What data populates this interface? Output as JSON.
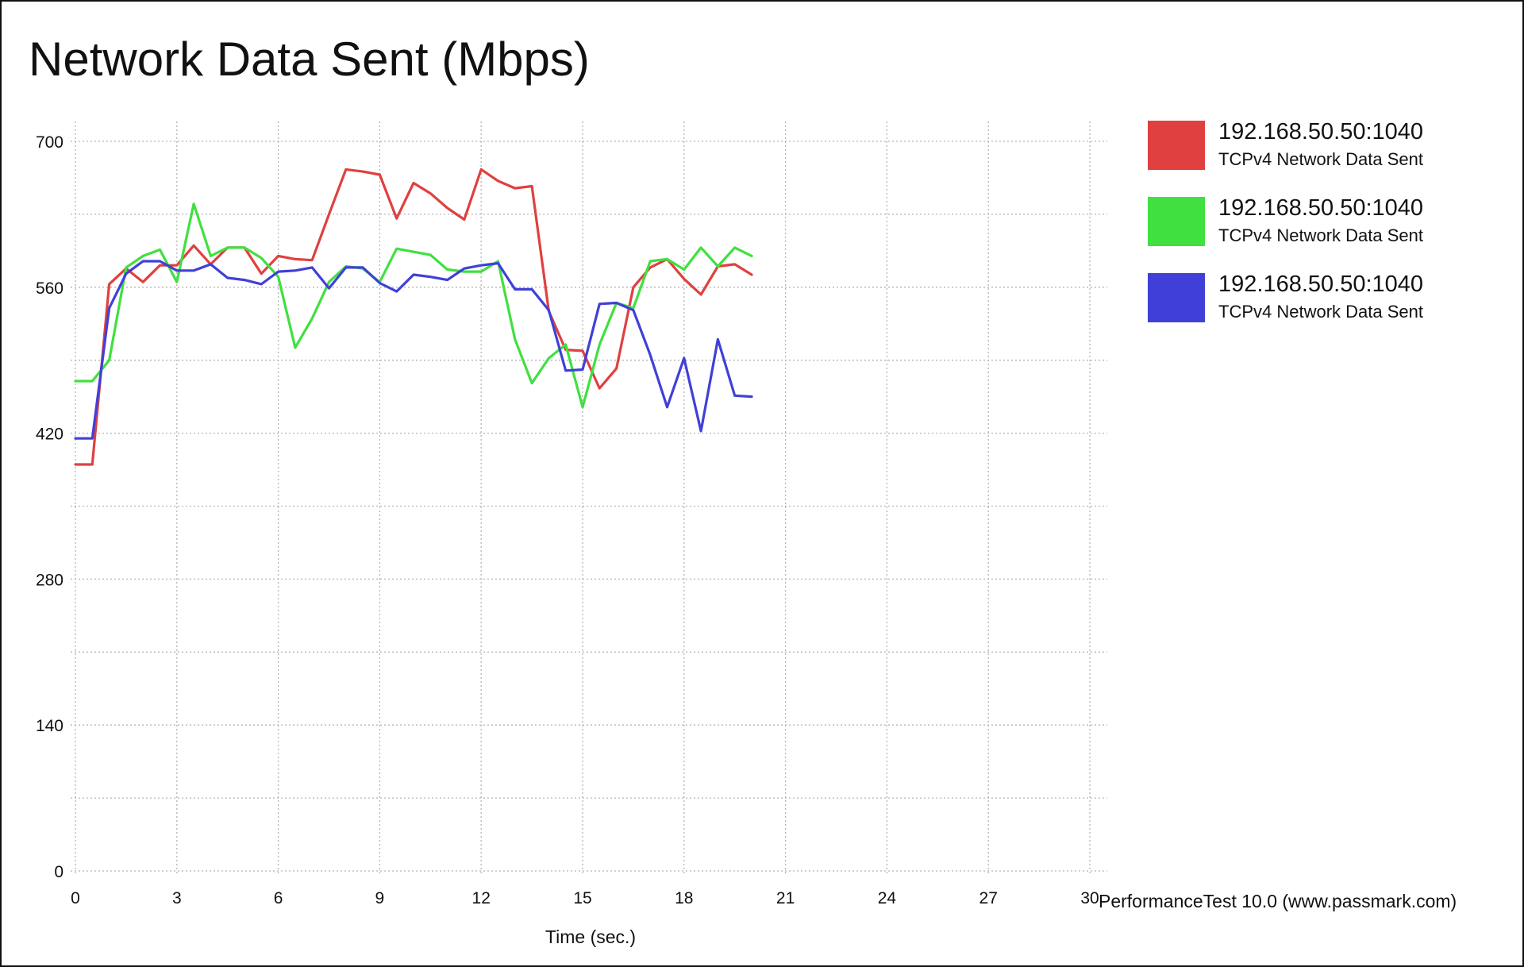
{
  "title": "Network Data Sent (Mbps)",
  "credit": "PerformanceTest 10.0 (www.passmark.com)",
  "chart_data": {
    "type": "line",
    "title": "Network Data Sent (Mbps)",
    "xlabel": "Time (sec.)",
    "ylabel": "",
    "xlim": [
      0,
      30
    ],
    "ylim": [
      0,
      700
    ],
    "x_ticks": [
      "0",
      "3",
      "6",
      "9",
      "12",
      "15",
      "18",
      "21",
      "24",
      "27",
      "30"
    ],
    "y_ticks": [
      "0",
      "140",
      "280",
      "420",
      "560",
      "700"
    ],
    "grid": true,
    "grid_style": "dotted",
    "legend_position": "right",
    "series": [
      {
        "name": "192.168.50.50:1040",
        "subtitle": "TCPv4 Network Data Sent",
        "color": "#e04040",
        "points": [
          [
            0,
            390
          ],
          [
            0.5,
            390
          ],
          [
            1,
            563
          ],
          [
            1.5,
            578
          ],
          [
            2,
            565
          ],
          [
            2.5,
            581
          ],
          [
            3,
            581
          ],
          [
            3.5,
            600
          ],
          [
            4,
            582
          ],
          [
            4.5,
            598
          ],
          [
            5,
            598
          ],
          [
            5.5,
            573
          ],
          [
            6,
            590
          ],
          [
            6.5,
            587
          ],
          [
            7,
            586
          ],
          [
            7.5,
            630
          ],
          [
            8,
            673
          ],
          [
            8.5,
            671
          ],
          [
            9,
            668
          ],
          [
            9.5,
            626
          ],
          [
            10,
            660
          ],
          [
            10.5,
            650
          ],
          [
            11,
            636
          ],
          [
            11.5,
            625
          ],
          [
            12,
            673
          ],
          [
            12.5,
            662
          ],
          [
            13,
            655
          ],
          [
            13.5,
            657
          ],
          [
            14,
            537
          ],
          [
            14.5,
            500
          ],
          [
            15,
            499
          ],
          [
            15.5,
            463
          ],
          [
            16,
            482
          ],
          [
            16.5,
            560
          ],
          [
            17,
            579
          ],
          [
            17.5,
            587
          ],
          [
            18,
            568
          ],
          [
            18.5,
            553
          ],
          [
            19,
            580
          ],
          [
            19.5,
            582
          ],
          [
            20,
            572
          ]
        ]
      },
      {
        "name": "192.168.50.50:1040",
        "subtitle": "TCPv4 Network Data Sent",
        "color": "#40e040",
        "points": [
          [
            0,
            470
          ],
          [
            0.5,
            470
          ],
          [
            1,
            490
          ],
          [
            1.5,
            579
          ],
          [
            2,
            590
          ],
          [
            2.5,
            596
          ],
          [
            3,
            565
          ],
          [
            3.5,
            640
          ],
          [
            4,
            590
          ],
          [
            4.5,
            598
          ],
          [
            5,
            598
          ],
          [
            5.5,
            588
          ],
          [
            6,
            570
          ],
          [
            6.5,
            502
          ],
          [
            7,
            530
          ],
          [
            7.5,
            565
          ],
          [
            8,
            580
          ],
          [
            8.5,
            578
          ],
          [
            9,
            565
          ],
          [
            9.5,
            597
          ],
          [
            10,
            594
          ],
          [
            10.5,
            591
          ],
          [
            11,
            577
          ],
          [
            11.5,
            575
          ],
          [
            12,
            575
          ],
          [
            12.5,
            585
          ],
          [
            13,
            510
          ],
          [
            13.5,
            468
          ],
          [
            14,
            492
          ],
          [
            14.5,
            505
          ],
          [
            15,
            445
          ],
          [
            15.5,
            505
          ],
          [
            16,
            545
          ],
          [
            16.5,
            540
          ],
          [
            17,
            585
          ],
          [
            17.5,
            587
          ],
          [
            18,
            577
          ],
          [
            18.5,
            598
          ],
          [
            19,
            580
          ],
          [
            19.5,
            598
          ],
          [
            20,
            590
          ]
        ]
      },
      {
        "name": "192.168.50.50:1040",
        "subtitle": "TCPv4 Network Data Sent",
        "color": "#4040d8",
        "points": [
          [
            0,
            415
          ],
          [
            0.5,
            415
          ],
          [
            1,
            540
          ],
          [
            1.5,
            573
          ],
          [
            2,
            585
          ],
          [
            2.5,
            585
          ],
          [
            3,
            576
          ],
          [
            3.5,
            576
          ],
          [
            4,
            582
          ],
          [
            4.5,
            569
          ],
          [
            5,
            567
          ],
          [
            5.5,
            563
          ],
          [
            6,
            575
          ],
          [
            6.5,
            576
          ],
          [
            7,
            579
          ],
          [
            7.5,
            559
          ],
          [
            8,
            579
          ],
          [
            8.5,
            579
          ],
          [
            9,
            564
          ],
          [
            9.5,
            556
          ],
          [
            10,
            572
          ],
          [
            10.5,
            570
          ],
          [
            11,
            567
          ],
          [
            11.5,
            578
          ],
          [
            12,
            581
          ],
          [
            12.5,
            583
          ],
          [
            13,
            558
          ],
          [
            13.5,
            558
          ],
          [
            14,
            538
          ],
          [
            14.5,
            480
          ],
          [
            15,
            481
          ],
          [
            15.5,
            544
          ],
          [
            16,
            545
          ],
          [
            16.5,
            538
          ],
          [
            17,
            495
          ],
          [
            17.5,
            445
          ],
          [
            18,
            492
          ],
          [
            18.5,
            422
          ],
          [
            19,
            510
          ],
          [
            19.5,
            456
          ],
          [
            20,
            455
          ]
        ]
      }
    ]
  }
}
